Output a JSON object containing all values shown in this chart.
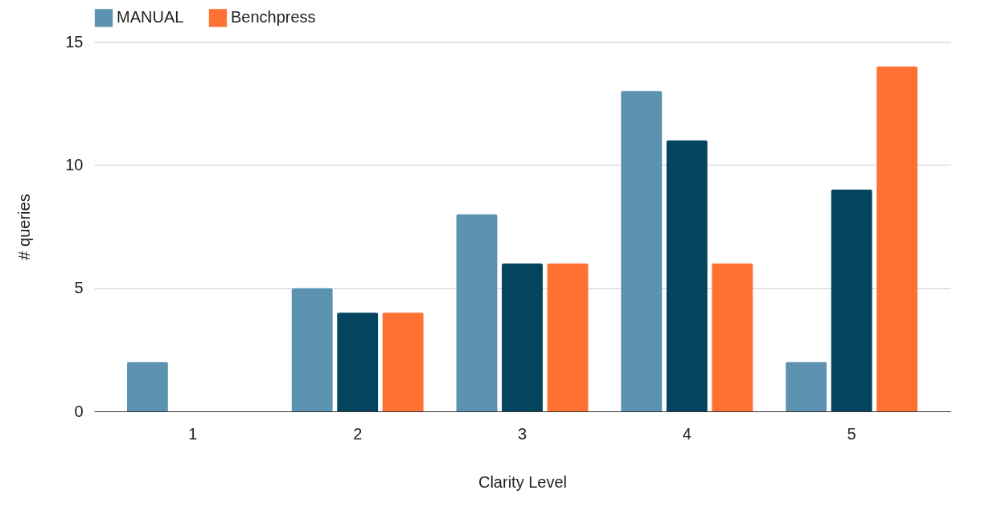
{
  "chart_data": {
    "type": "bar",
    "xlabel": "Clarity Level",
    "ylabel": "# queries",
    "categories": [
      "1",
      "2",
      "3",
      "4",
      "5"
    ],
    "series": [
      {
        "name": "MANUAL",
        "color": "#5b93b0",
        "values": [
          2,
          5,
          8,
          13,
          2
        ]
      },
      {
        "color": "#03445f",
        "values": [
          0,
          4,
          6,
          11,
          9
        ]
      },
      {
        "name": "Benchpress",
        "color": "#ff7033",
        "values": [
          0,
          4,
          6,
          6,
          14
        ]
      }
    ],
    "ylim": [
      0,
      15
    ],
    "yticks": [
      0,
      5,
      10,
      15
    ],
    "grid": "y",
    "legend": "top"
  }
}
